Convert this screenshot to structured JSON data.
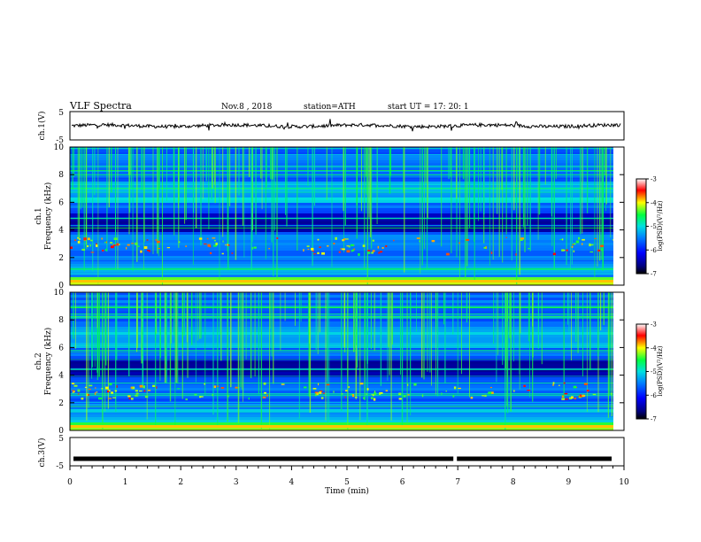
{
  "header": {
    "title": "VLF Spectra",
    "date": "Nov.8  , 2018",
    "station": "station=ATH",
    "start": "start  UT  =   17: 20: 1"
  },
  "chart_data": [
    {
      "type": "line",
      "name": "ch1-waveform",
      "ylabel": "ch.1(V)",
      "ylim": [
        -5,
        5
      ],
      "yticks": [
        "5",
        "-5"
      ],
      "xlim": [
        0,
        10
      ],
      "baseline": 0
    },
    {
      "type": "heatmap",
      "name": "ch1-spectrogram",
      "ylabel_line1": "ch.1",
      "ylabel_line2": "Frequency  (kHz)",
      "ylim": [
        0,
        10
      ],
      "yticks": [
        "0",
        "2",
        "4",
        "6",
        "8",
        "10"
      ],
      "xlim": [
        0,
        10
      ],
      "emission_band_khz": [
        2.3,
        3.5
      ],
      "colorbar": {
        "label": "log(PSD)(V²/Hz)",
        "range": [
          -7,
          -3
        ],
        "ticks": [
          "-3",
          "-4",
          "-5",
          "-6",
          "-7"
        ]
      }
    },
    {
      "type": "heatmap",
      "name": "ch2-spectrogram",
      "ylabel_line1": "ch.2",
      "ylabel_line2": "Frequency  (kHz)",
      "ylim": [
        0,
        10
      ],
      "yticks": [
        "0",
        "2",
        "4",
        "6",
        "8",
        "10"
      ],
      "xlim": [
        0,
        10
      ],
      "emission_band_khz": [
        2.3,
        3.5
      ],
      "colorbar": {
        "label": "log(PSD)(V²/Hz)",
        "range": [
          -7,
          -3
        ],
        "ticks": [
          "-3",
          "-4",
          "-5",
          "-6",
          "-7"
        ]
      }
    },
    {
      "type": "line",
      "name": "ch3-waveform",
      "ylabel": "ch.3(V)",
      "ylim": [
        -5,
        5
      ],
      "yticks": [
        "5",
        "-5"
      ],
      "xlim": [
        0,
        10
      ],
      "baseline": -2.5,
      "xlabel": "Time  (min)",
      "xticks": [
        "0",
        "1",
        "2",
        "3",
        "4",
        "5",
        "6",
        "7",
        "8",
        "9",
        "10"
      ]
    }
  ]
}
